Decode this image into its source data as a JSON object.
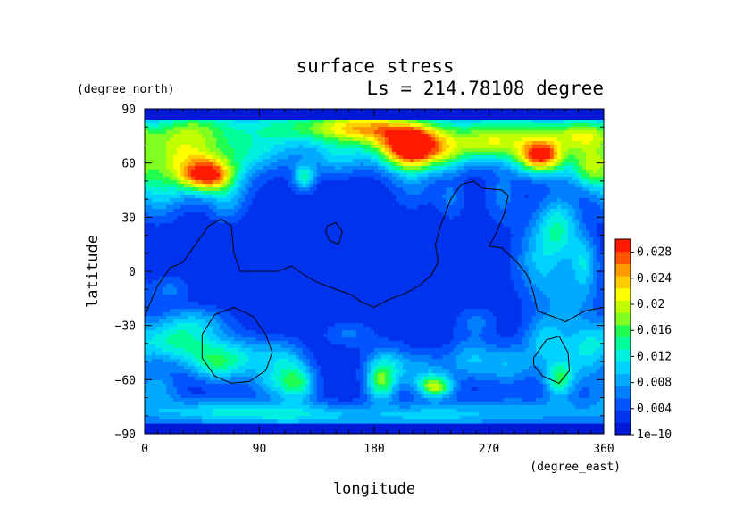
{
  "chart_data": {
    "type": "heatmap",
    "title": "surface stress",
    "subtitle": "Ls = 214.78108 degree",
    "xlabel": "longitude",
    "ylabel": "latitude",
    "x_units": "(degree_east)",
    "y_units": "(degree_north)",
    "xlim": [
      0,
      360
    ],
    "ylim": [
      -90,
      90
    ],
    "x_ticks": [
      "0",
      "90",
      "180",
      "270",
      "360"
    ],
    "y_ticks": [
      "90",
      "60",
      "30",
      "0",
      "−30",
      "−60",
      "−90"
    ],
    "x_tick_values": [
      0,
      90,
      180,
      270,
      360
    ],
    "y_tick_values": [
      90,
      60,
      30,
      0,
      -30,
      -60,
      -90
    ],
    "colorbar": {
      "min": 0,
      "max": 0.03,
      "labels": [
        "1e−10",
        "0.004",
        "0.008",
        "0.012",
        "0.016",
        "0.02",
        "0.024",
        "0.028"
      ],
      "label_values": [
        0,
        0.004,
        0.008,
        0.012,
        0.016,
        0.02,
        0.024,
        0.028
      ],
      "colors": [
        "#0019d9",
        "#0033ee",
        "#0055ff",
        "#0080ff",
        "#00aaff",
        "#00d2ff",
        "#00f0e0",
        "#00ff9a",
        "#20ff50",
        "#80ff20",
        "#c0ff00",
        "#ffff00",
        "#ffcc00",
        "#ff9900",
        "#ff5500",
        "#ff1a00"
      ]
    },
    "background_value": 0.002,
    "blobs": [
      {
        "lon": 40,
        "lat": 80,
        "w": 22,
        "h": 8,
        "v": 0.009
      },
      {
        "lon": 110,
        "lat": 80,
        "w": 35,
        "h": 7,
        "v": 0.01
      },
      {
        "lon": 170,
        "lat": 80,
        "w": 28,
        "h": 6,
        "v": 0.015
      },
      {
        "lon": 280,
        "lat": 78,
        "w": 45,
        "h": 7,
        "v": 0.011
      },
      {
        "lon": 345,
        "lat": 76,
        "w": 15,
        "h": 6,
        "v": 0.01
      },
      {
        "lon": 25,
        "lat": 65,
        "w": 20,
        "h": 12,
        "v": 0.01
      },
      {
        "lon": 50,
        "lat": 53,
        "w": 14,
        "h": 6,
        "v": 0.019
      },
      {
        "lon": 45,
        "lat": 57,
        "w": 28,
        "h": 12,
        "v": 0.008
      },
      {
        "lon": 85,
        "lat": 66,
        "w": 28,
        "h": 7,
        "v": 0.007
      },
      {
        "lon": 125,
        "lat": 52,
        "w": 6,
        "h": 5,
        "v": 0.011
      },
      {
        "lon": 150,
        "lat": 63,
        "w": 14,
        "h": 7,
        "v": 0.006
      },
      {
        "lon": 210,
        "lat": 68,
        "w": 16,
        "h": 8,
        "v": 0.025
      },
      {
        "lon": 195,
        "lat": 72,
        "w": 30,
        "h": 10,
        "v": 0.009
      },
      {
        "lon": 240,
        "lat": 65,
        "w": 12,
        "h": 7,
        "v": 0.008
      },
      {
        "lon": 270,
        "lat": 69,
        "w": 18,
        "h": 6,
        "v": 0.01
      },
      {
        "lon": 310,
        "lat": 64,
        "w": 12,
        "h": 6,
        "v": 0.019
      },
      {
        "lon": 320,
        "lat": 65,
        "w": 30,
        "h": 10,
        "v": 0.009
      },
      {
        "lon": 350,
        "lat": 57,
        "w": 10,
        "h": 8,
        "v": 0.01
      },
      {
        "lon": 10,
        "lat": 42,
        "w": 12,
        "h": 10,
        "v": 0.006
      },
      {
        "lon": 65,
        "lat": 38,
        "w": 10,
        "h": 8,
        "v": 0.005
      },
      {
        "lon": 210,
        "lat": 48,
        "w": 12,
        "h": 10,
        "v": 0.004
      },
      {
        "lon": 280,
        "lat": 40,
        "w": 10,
        "h": 10,
        "v": 0.004
      },
      {
        "lon": 325,
        "lat": 25,
        "w": 12,
        "h": 12,
        "v": 0.01
      },
      {
        "lon": 310,
        "lat": 5,
        "w": 14,
        "h": 15,
        "v": 0.007
      },
      {
        "lon": 345,
        "lat": 5,
        "w": 8,
        "h": 10,
        "v": 0.008
      },
      {
        "lon": 335,
        "lat": -15,
        "w": 15,
        "h": 10,
        "v": 0.005
      },
      {
        "lon": 240,
        "lat": 40,
        "w": 8,
        "h": 8,
        "v": 0.004
      },
      {
        "lon": 20,
        "lat": -10,
        "w": 10,
        "h": 6,
        "v": 0.004
      },
      {
        "lon": 15,
        "lat": -38,
        "w": 18,
        "h": 8,
        "v": 0.007
      },
      {
        "lon": 40,
        "lat": -42,
        "w": 20,
        "h": 8,
        "v": 0.007
      },
      {
        "lon": 55,
        "lat": -52,
        "w": 14,
        "h": 7,
        "v": 0.008
      },
      {
        "lon": 80,
        "lat": -48,
        "w": 18,
        "h": 8,
        "v": 0.007
      },
      {
        "lon": 110,
        "lat": -48,
        "w": 12,
        "h": 7,
        "v": 0.006
      },
      {
        "lon": 120,
        "lat": -62,
        "w": 10,
        "h": 7,
        "v": 0.012
      },
      {
        "lon": 100,
        "lat": -62,
        "w": 12,
        "h": 6,
        "v": 0.006
      },
      {
        "lon": 10,
        "lat": -65,
        "w": 12,
        "h": 7,
        "v": 0.006
      },
      {
        "lon": 40,
        "lat": -28,
        "w": 18,
        "h": 6,
        "v": 0.006
      },
      {
        "lon": 60,
        "lat": -78,
        "w": 40,
        "h": 5,
        "v": 0.008
      },
      {
        "lon": 130,
        "lat": -80,
        "w": 40,
        "h": 5,
        "v": 0.007
      },
      {
        "lon": 220,
        "lat": -80,
        "w": 35,
        "h": 5,
        "v": 0.006
      },
      {
        "lon": 300,
        "lat": -78,
        "w": 50,
        "h": 6,
        "v": 0.006
      },
      {
        "lon": 185,
        "lat": -62,
        "w": 8,
        "h": 7,
        "v": 0.012
      },
      {
        "lon": 190,
        "lat": -52,
        "w": 12,
        "h": 8,
        "v": 0.007
      },
      {
        "lon": 228,
        "lat": -64,
        "w": 9,
        "h": 4,
        "v": 0.015
      },
      {
        "lon": 220,
        "lat": -56,
        "w": 16,
        "h": 8,
        "v": 0.006
      },
      {
        "lon": 255,
        "lat": -48,
        "w": 12,
        "h": 8,
        "v": 0.006
      },
      {
        "lon": 285,
        "lat": -52,
        "w": 16,
        "h": 8,
        "v": 0.007
      },
      {
        "lon": 315,
        "lat": -38,
        "w": 12,
        "h": 10,
        "v": 0.008
      },
      {
        "lon": 325,
        "lat": -60,
        "w": 8,
        "h": 7,
        "v": 0.012
      },
      {
        "lon": 345,
        "lat": -45,
        "w": 12,
        "h": 12,
        "v": 0.008
      },
      {
        "lon": 260,
        "lat": -28,
        "w": 12,
        "h": 6,
        "v": 0.004
      },
      {
        "lon": 160,
        "lat": -35,
        "w": 14,
        "h": 5,
        "v": 0.004
      }
    ],
    "contours": [
      [
        [
          0,
          -25
        ],
        [
          10,
          -8
        ],
        [
          20,
          2
        ],
        [
          30,
          5
        ],
        [
          40,
          15
        ],
        [
          50,
          25
        ],
        [
          60,
          29
        ],
        [
          68,
          25
        ],
        [
          70,
          10
        ],
        [
          75,
          0
        ],
        [
          90,
          0
        ],
        [
          105,
          0
        ],
        [
          115,
          3
        ],
        [
          125,
          -2
        ],
        [
          135,
          -6
        ],
        [
          150,
          -10
        ],
        [
          162,
          -13
        ],
        [
          170,
          -17
        ],
        [
          180,
          -20
        ],
        [
          190,
          -16
        ],
        [
          205,
          -12
        ],
        [
          215,
          -8
        ],
        [
          225,
          -2
        ],
        [
          230,
          5
        ],
        [
          228,
          15
        ],
        [
          232,
          25
        ],
        [
          240,
          40
        ],
        [
          248,
          48
        ],
        [
          258,
          50
        ],
        [
          265,
          46
        ],
        [
          280,
          45
        ],
        [
          285,
          42
        ],
        [
          282,
          32
        ],
        [
          275,
          20
        ],
        [
          270,
          14
        ],
        [
          280,
          13
        ],
        [
          292,
          5
        ],
        [
          300,
          -2
        ],
        [
          305,
          -12
        ],
        [
          308,
          -22
        ],
        [
          320,
          -25
        ],
        [
          330,
          -28
        ],
        [
          345,
          -22
        ],
        [
          360,
          -20
        ]
      ],
      [
        [
          143,
          25
        ],
        [
          150,
          27
        ],
        [
          155,
          22
        ],
        [
          152,
          15
        ],
        [
          145,
          17
        ],
        [
          142,
          22
        ],
        [
          143,
          25
        ]
      ],
      [
        [
          45,
          -35
        ],
        [
          55,
          -24
        ],
        [
          70,
          -20
        ],
        [
          85,
          -25
        ],
        [
          95,
          -35
        ],
        [
          100,
          -45
        ],
        [
          95,
          -55
        ],
        [
          82,
          -61
        ],
        [
          68,
          -62
        ],
        [
          55,
          -58
        ],
        [
          45,
          -48
        ],
        [
          45,
          -35
        ]
      ],
      [
        [
          305,
          -48
        ],
        [
          315,
          -38
        ],
        [
          325,
          -36
        ],
        [
          332,
          -45
        ],
        [
          333,
          -55
        ],
        [
          325,
          -62
        ],
        [
          312,
          -58
        ],
        [
          305,
          -52
        ],
        [
          305,
          -48
        ]
      ]
    ]
  }
}
